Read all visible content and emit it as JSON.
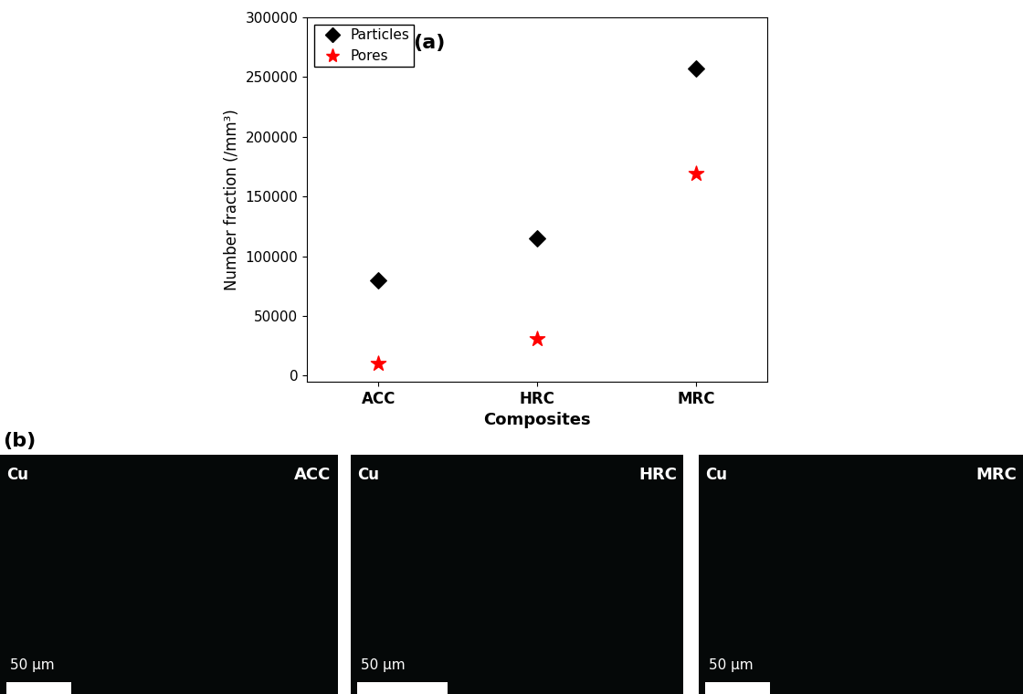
{
  "chart_data": {
    "type": "scatter",
    "annotation": "(a)",
    "x_label": "Composites",
    "y_label": "Number fraction (/mm³)",
    "categories": [
      "ACC",
      "HRC",
      "MRC"
    ],
    "series": [
      {
        "name": "Particles",
        "color": "#000000",
        "marker": "diamond",
        "values": [
          80000,
          115000,
          257000
        ]
      },
      {
        "name": "Pores",
        "color": "#ff0000",
        "marker": "star",
        "values": [
          10000,
          31000,
          169000
        ]
      }
    ],
    "ylim": [
      -5000,
      300000
    ],
    "yticks": [
      0,
      50000,
      100000,
      150000,
      200000,
      250000,
      300000
    ],
    "legend": "upper left",
    "grid": false
  },
  "maps": {
    "label": "(b)",
    "panels": [
      {
        "element": "Cu",
        "sample": "ACC",
        "scale_bar": "50 μm"
      },
      {
        "element": "Cu",
        "sample": "HRC",
        "scale_bar": "50 μm"
      },
      {
        "element": "Cu",
        "sample": "MRC",
        "scale_bar": "50 μm"
      }
    ]
  }
}
